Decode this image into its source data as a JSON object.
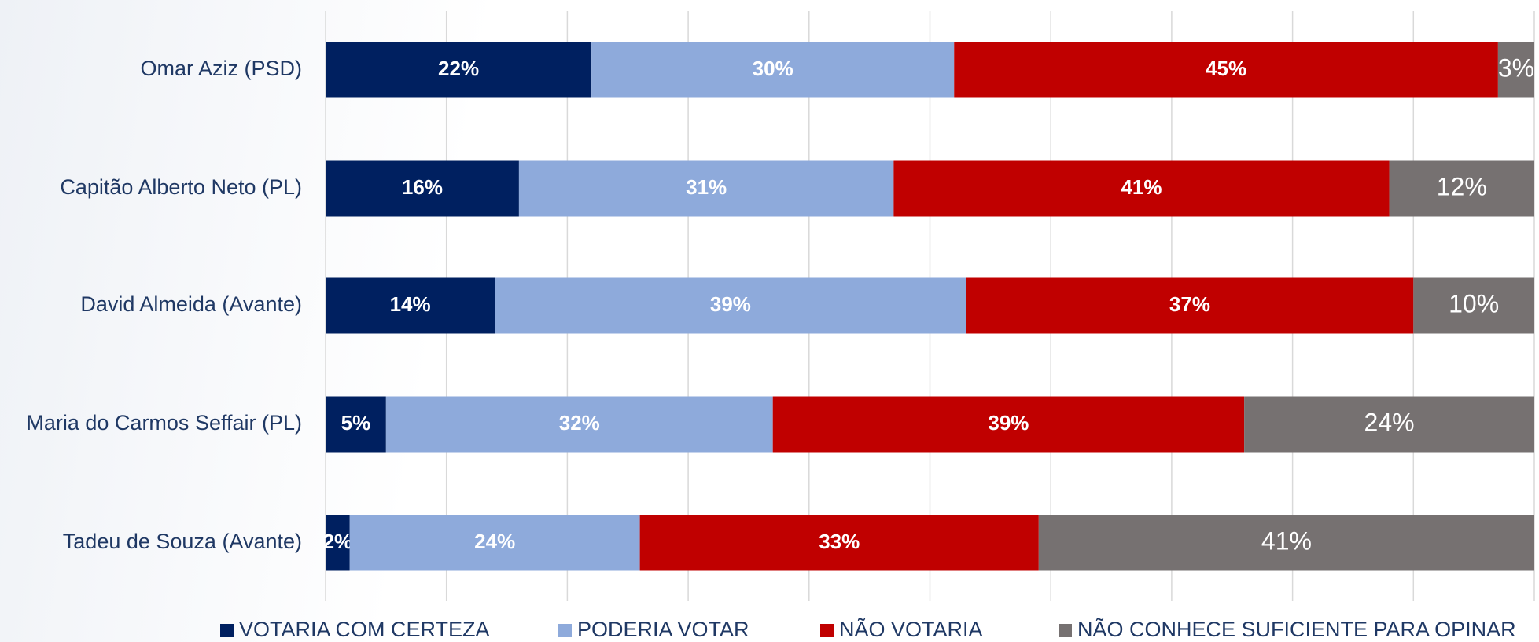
{
  "chart_data": {
    "type": "stacked_bar_horizontal",
    "categories": [
      "Omar Aziz (PSD)",
      "Capitão Alberto Neto (PL)",
      "David Almeida (Avante)",
      "Maria do Carmos Seffair (PL)",
      "Tadeu de Souza (Avante)"
    ],
    "series": [
      {
        "name": "VOTARIA COM CERTEZA",
        "color": "#002060",
        "values": [
          22,
          16,
          14,
          5,
          2
        ],
        "value_labels": [
          "22%",
          "16%",
          "14%",
          "5%",
          "2%"
        ]
      },
      {
        "name": "PODERIA VOTAR",
        "color": "#8eaadb",
        "values": [
          30,
          31,
          39,
          32,
          24
        ],
        "value_labels": [
          "30%",
          "31%",
          "39%",
          "32%",
          "24%"
        ]
      },
      {
        "name": "NÃO VOTARIA",
        "color": "#c00000",
        "values": [
          45,
          41,
          37,
          39,
          33
        ],
        "value_labels": [
          "45%",
          "41%",
          "37%",
          "39%",
          "33%"
        ]
      },
      {
        "name": "NÃO CONHECE SUFICIENTE PARA OPINAR",
        "color": "#767171",
        "values": [
          3,
          12,
          10,
          24,
          41
        ],
        "value_labels": [
          "3%",
          "12%",
          "10%",
          "24%",
          "41%"
        ]
      }
    ],
    "xlim": [
      0,
      100
    ],
    "xticks": [
      0,
      10,
      20,
      30,
      40,
      50,
      60,
      70,
      80,
      90,
      100
    ],
    "grid": true,
    "legend": "bottom"
  }
}
